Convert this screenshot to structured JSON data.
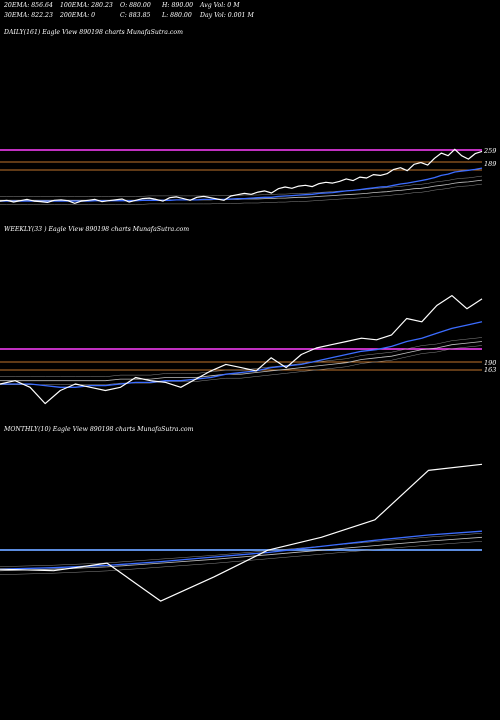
{
  "header": {
    "row1": [
      "20EMA: 856.64",
      "100EMA: 280.23",
      "O: 880.00",
      "H: 890.00",
      "Avg Vol: 0  M"
    ],
    "row2": [
      "30EMA: 822.23",
      "200EMA: 0",
      "C: 883.85",
      "L: 880.00",
      "Day Vol: 0.001 M"
    ]
  },
  "panels": [
    {
      "label": "DAILY(161) Eagle   View  890198 charts MunafaSutra.com",
      "levels": [
        "259",
        "189"
      ]
    },
    {
      "label": "WEEKLY(33                              ) Eagle   View  890198 charts MunafaSutra.com",
      "levels": [
        "190",
        "163"
      ]
    },
    {
      "label": "MONTHLY(10) Eagle   View  890198 charts MunafaSutra.com",
      "levels": []
    }
  ],
  "colors": {
    "background": "#000000",
    "price": "#ffffff",
    "ema_short": "#3b6cff",
    "ema_long": "#c0c0c0",
    "resistance": "#ff40ff",
    "support": "#ff9a3a",
    "monthly_level": "#6aa0ff"
  },
  "chart_data": [
    {
      "type": "line",
      "name": "daily",
      "x_count": 72,
      "ylim": [
        140,
        560
      ],
      "series": [
        {
          "name": "price",
          "values": [
            184,
            186,
            182,
            185,
            188,
            184,
            183,
            181,
            186,
            187,
            185,
            179,
            184,
            186,
            188,
            183,
            185,
            187,
            189,
            182,
            186,
            190,
            191,
            188,
            184,
            192,
            194,
            190,
            186,
            193,
            195,
            192,
            189,
            186,
            196,
            199,
            202,
            200,
            205,
            208,
            203,
            213,
            217,
            214,
            219,
            221,
            218,
            225,
            228,
            226,
            230,
            236,
            232,
            240,
            238,
            246,
            244,
            248,
            258,
            262,
            255,
            270,
            274,
            268,
            284,
            296,
            290,
            305,
            290,
            282,
            295,
            300
          ]
        },
        {
          "name": "ema_short",
          "values": [
            184,
            184,
            184,
            184,
            184,
            184,
            184,
            184,
            184,
            184,
            184,
            184,
            184,
            184,
            185,
            185,
            185,
            185,
            185,
            185,
            185,
            186,
            186,
            186,
            186,
            186,
            187,
            187,
            187,
            187,
            188,
            188,
            188,
            188,
            189,
            190,
            190,
            191,
            192,
            193,
            193,
            195,
            196,
            197,
            198,
            199,
            200,
            202,
            203,
            204,
            206,
            208,
            209,
            211,
            213,
            215,
            217,
            218,
            221,
            224,
            226,
            229,
            232,
            235,
            239,
            244,
            247,
            252,
            254,
            256,
            258,
            261
          ]
        },
        {
          "name": "ema_long",
          "values": [
            186,
            186,
            186,
            186,
            186,
            186,
            186,
            186,
            186,
            186,
            186,
            186,
            186,
            186,
            186,
            186,
            186,
            186,
            186,
            186,
            186,
            186,
            187,
            187,
            187,
            187,
            187,
            187,
            187,
            187,
            187,
            187,
            188,
            188,
            188,
            188,
            189,
            189,
            189,
            190,
            190,
            191,
            191,
            192,
            193,
            193,
            194,
            195,
            196,
            197,
            198,
            199,
            200,
            201,
            202,
            204,
            205,
            206,
            208,
            209,
            211,
            213,
            214,
            216,
            219,
            221,
            223,
            226,
            228,
            229,
            231,
            233
          ]
        }
      ]
    },
    {
      "type": "line",
      "name": "weekly",
      "x_count": 33,
      "ylim": [
        150,
        260
      ],
      "series": [
        {
          "name": "price",
          "values": [
            172,
            174,
            170,
            160,
            168,
            172,
            170,
            168,
            170,
            176,
            174,
            173,
            170,
            175,
            180,
            184,
            182,
            180,
            188,
            182,
            190,
            194,
            196,
            198,
            200,
            199,
            202,
            212,
            210,
            220,
            226,
            218,
            224
          ]
        },
        {
          "name": "ema_short",
          "values": [
            172,
            172,
            172,
            171,
            170,
            170,
            171,
            171,
            172,
            173,
            173,
            174,
            174,
            175,
            176,
            178,
            179,
            180,
            182,
            183,
            184,
            186,
            188,
            190,
            192,
            193,
            195,
            198,
            200,
            203,
            206,
            208,
            210
          ]
        },
        {
          "name": "ema_long",
          "values": [
            174,
            174,
            174,
            174,
            174,
            174,
            174,
            174,
            175,
            175,
            175,
            176,
            176,
            176,
            177,
            178,
            178,
            179,
            180,
            181,
            182,
            183,
            184,
            185,
            187,
            188,
            189,
            191,
            193,
            194,
            196,
            197,
            198
          ]
        }
      ]
    },
    {
      "type": "line",
      "name": "monthly",
      "x_count": 10,
      "ylim": [
        80,
        330
      ],
      "series": [
        {
          "name": "price",
          "values": [
            160,
            158,
            168,
            118,
            150,
            185,
            202,
            225,
            290,
            298
          ]
        },
        {
          "name": "ema_short",
          "values": [
            160,
            162,
            165,
            170,
            176,
            182,
            190,
            198,
            205,
            210
          ]
        },
        {
          "name": "ema_long",
          "values": [
            158,
            160,
            163,
            168,
            173,
            179,
            185,
            191,
            197,
            202
          ]
        }
      ]
    }
  ]
}
